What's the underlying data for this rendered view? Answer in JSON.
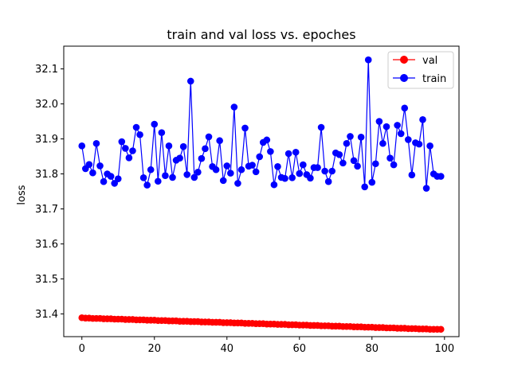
{
  "chart_data": {
    "type": "line",
    "title": "train and val loss vs. epoches",
    "xlabel": "",
    "ylabel": "loss",
    "xlim": [
      -5,
      104
    ],
    "ylim": [
      31.335,
      32.165
    ],
    "xticks": [
      0,
      20,
      40,
      60,
      80,
      100
    ],
    "yticks": [
      31.4,
      31.5,
      31.6,
      31.7,
      31.8,
      31.9,
      32.0,
      32.1
    ],
    "ytick_labels": [
      "31.4",
      "31.5",
      "31.6",
      "31.7",
      "31.8",
      "31.9",
      "32.0",
      "32.1"
    ],
    "xtick_labels": [
      "0",
      "20",
      "40",
      "60",
      "80",
      "100"
    ],
    "grid": false,
    "legend_position": "top-right",
    "series": [
      {
        "name": "val",
        "color": "#ff0000",
        "marker": "circle",
        "x": [
          0,
          1,
          2,
          3,
          4,
          5,
          6,
          7,
          8,
          9,
          10,
          11,
          12,
          13,
          14,
          15,
          16,
          17,
          18,
          19,
          20,
          21,
          22,
          23,
          24,
          25,
          26,
          27,
          28,
          29,
          30,
          31,
          32,
          33,
          34,
          35,
          36,
          37,
          38,
          39,
          40,
          41,
          42,
          43,
          44,
          45,
          46,
          47,
          48,
          49,
          50,
          51,
          52,
          53,
          54,
          55,
          56,
          57,
          58,
          59,
          60,
          61,
          62,
          63,
          64,
          65,
          66,
          67,
          68,
          69,
          70,
          71,
          72,
          73,
          74,
          75,
          76,
          77,
          78,
          79,
          80,
          81,
          82,
          83,
          84,
          85,
          86,
          87,
          88,
          89,
          90,
          91,
          92,
          93,
          94,
          95,
          96,
          97,
          98,
          99
        ],
        "values": [
          31.389,
          31.388,
          31.388,
          31.387,
          31.387,
          31.387,
          31.386,
          31.386,
          31.386,
          31.385,
          31.385,
          31.385,
          31.384,
          31.384,
          31.384,
          31.383,
          31.383,
          31.383,
          31.382,
          31.382,
          31.382,
          31.381,
          31.381,
          31.381,
          31.38,
          31.38,
          31.38,
          31.379,
          31.379,
          31.379,
          31.378,
          31.378,
          31.378,
          31.377,
          31.377,
          31.377,
          31.376,
          31.376,
          31.376,
          31.375,
          31.375,
          31.375,
          31.374,
          31.374,
          31.374,
          31.373,
          31.373,
          31.373,
          31.372,
          31.372,
          31.372,
          31.371,
          31.371,
          31.371,
          31.37,
          31.37,
          31.37,
          31.369,
          31.369,
          31.369,
          31.368,
          31.368,
          31.368,
          31.367,
          31.367,
          31.367,
          31.366,
          31.366,
          31.366,
          31.365,
          31.365,
          31.365,
          31.364,
          31.364,
          31.364,
          31.363,
          31.363,
          31.363,
          31.362,
          31.362,
          31.362,
          31.361,
          31.361,
          31.361,
          31.36,
          31.36,
          31.36,
          31.359,
          31.359,
          31.359,
          31.358,
          31.358,
          31.358,
          31.357,
          31.357,
          31.357,
          31.356,
          31.356,
          31.356,
          31.356
        ]
      },
      {
        "name": "train",
        "color": "#0000ff",
        "marker": "circle",
        "x": [
          0,
          1,
          2,
          3,
          4,
          5,
          6,
          7,
          8,
          9,
          10,
          11,
          12,
          13,
          14,
          15,
          16,
          17,
          18,
          19,
          20,
          21,
          22,
          23,
          24,
          25,
          26,
          27,
          28,
          29,
          30,
          31,
          32,
          33,
          34,
          35,
          36,
          37,
          38,
          39,
          40,
          41,
          42,
          43,
          44,
          45,
          46,
          47,
          48,
          49,
          50,
          51,
          52,
          53,
          54,
          55,
          56,
          57,
          58,
          59,
          60,
          61,
          62,
          63,
          64,
          65,
          66,
          67,
          68,
          69,
          70,
          71,
          72,
          73,
          74,
          75,
          76,
          77,
          78,
          79,
          80,
          81,
          82,
          83,
          84,
          85,
          86,
          87,
          88,
          89,
          90,
          91,
          92,
          93,
          94,
          95,
          96,
          97,
          98,
          99
        ],
        "values": [
          31.88,
          31.815,
          31.827,
          31.803,
          31.887,
          31.823,
          31.778,
          31.8,
          31.793,
          31.773,
          31.786,
          31.892,
          31.873,
          31.846,
          31.866,
          31.933,
          31.912,
          31.789,
          31.768,
          31.812,
          31.942,
          31.779,
          31.918,
          31.795,
          31.88,
          31.79,
          31.839,
          31.845,
          31.878,
          31.798,
          32.065,
          31.79,
          31.805,
          31.844,
          31.872,
          31.906,
          31.821,
          31.812,
          31.895,
          31.781,
          31.823,
          31.802,
          31.991,
          31.773,
          31.812,
          31.931,
          31.822,
          31.825,
          31.806,
          31.849,
          31.89,
          31.897,
          31.864,
          31.769,
          31.821,
          31.79,
          31.787,
          31.858,
          31.789,
          31.862,
          31.801,
          31.826,
          31.798,
          31.788,
          31.818,
          31.818,
          31.933,
          31.808,
          31.778,
          31.808,
          31.86,
          31.855,
          31.831,
          31.887,
          31.907,
          31.838,
          31.822,
          31.905,
          31.763,
          32.126,
          31.776,
          31.829,
          31.95,
          31.887,
          31.935,
          31.845,
          31.826,
          31.939,
          31.915,
          31.988,
          31.898,
          31.797,
          31.889,
          31.885,
          31.955,
          31.759,
          31.88,
          31.8,
          31.793,
          31.793
        ]
      }
    ]
  }
}
